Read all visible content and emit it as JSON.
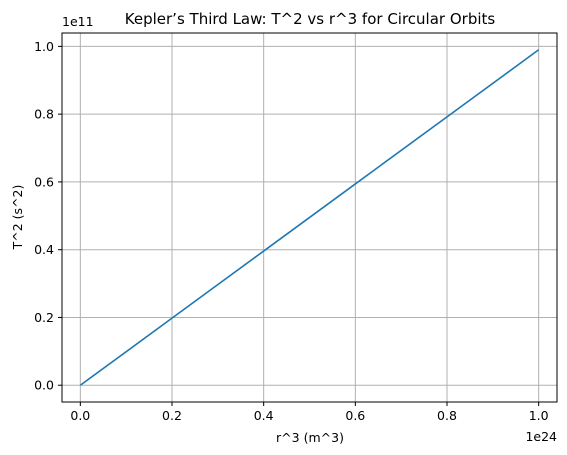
{
  "chart_data": {
    "type": "line",
    "title": "Kepler’s Third Law: T^2 vs r^3 for Circular Orbits",
    "xlabel": "r^3 (m^3)",
    "ylabel": "T^2 (s^2)",
    "x_offset_label": "1e24",
    "y_offset_label": "1e11",
    "xlim": [
      -0.04,
      1.04
    ],
    "ylim": [
      -0.0495,
      1.0395
    ],
    "x_ticks": [
      0.0,
      0.2,
      0.4,
      0.6,
      0.8,
      1.0
    ],
    "x_tick_labels": [
      "0.0",
      "0.2",
      "0.4",
      "0.6",
      "0.8",
      "1.0"
    ],
    "y_ticks": [
      0.0,
      0.2,
      0.4,
      0.6,
      0.8,
      1.0
    ],
    "y_tick_labels": [
      "0.0",
      "0.2",
      "0.4",
      "0.6",
      "0.8",
      "1.0"
    ],
    "grid": true,
    "series": [
      {
        "color": "#1f77b4",
        "x": [
          0.0,
          0.2,
          0.4,
          0.6,
          0.8,
          1.0
        ],
        "y": [
          0.0,
          0.198,
          0.396,
          0.594,
          0.792,
          0.99
        ]
      }
    ]
  }
}
